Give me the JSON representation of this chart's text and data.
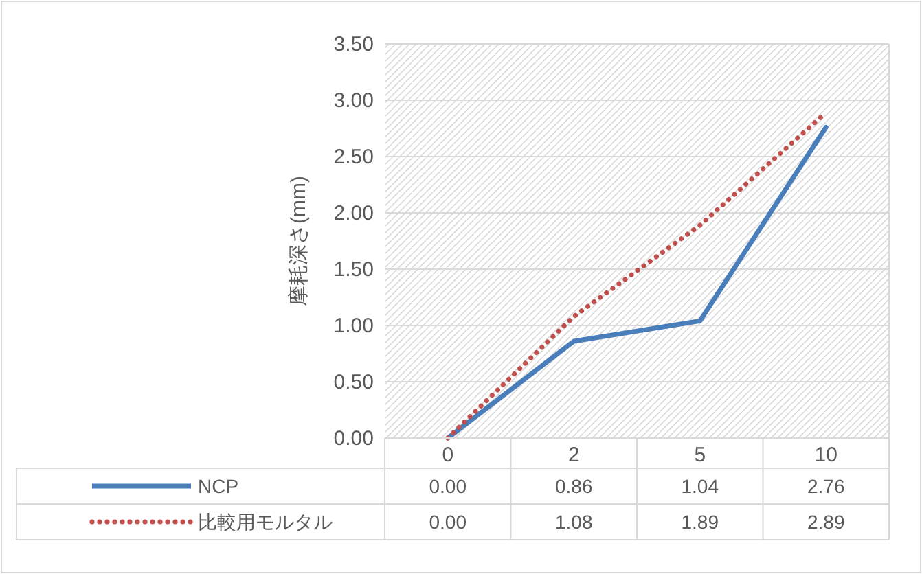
{
  "chart_data": {
    "type": "line",
    "ylabel": "摩耗深さ(mm)",
    "categories": [
      "0",
      "2",
      "5",
      "10"
    ],
    "series": [
      {
        "name": "NCP",
        "color": "#4a7ebb",
        "line_style": "solid",
        "values": [
          0.0,
          0.86,
          1.04,
          2.76
        ],
        "value_labels": [
          "0.00",
          "0.86",
          "1.04",
          "2.76"
        ]
      },
      {
        "name": "比較用モルタル",
        "color": "#c0504d",
        "line_style": "dotted",
        "values": [
          0.0,
          1.08,
          1.89,
          2.89
        ],
        "value_labels": [
          "0.00",
          "1.08",
          "1.89",
          "2.89"
        ]
      }
    ],
    "ylim": [
      0,
      3.5
    ],
    "yticks": [
      {
        "value": 0,
        "label": "0.00"
      },
      {
        "value": 0.5,
        "label": "0.50"
      },
      {
        "value": 1,
        "label": "1.00"
      },
      {
        "value": 1.5,
        "label": "1.50"
      },
      {
        "value": 2,
        "label": "2.00"
      },
      {
        "value": 2.5,
        "label": "2.50"
      },
      {
        "value": 3,
        "label": "3.00"
      },
      {
        "value": 3.5,
        "label": "3.50"
      }
    ],
    "grid": "y",
    "legend": "bottom",
    "marker": "none"
  }
}
